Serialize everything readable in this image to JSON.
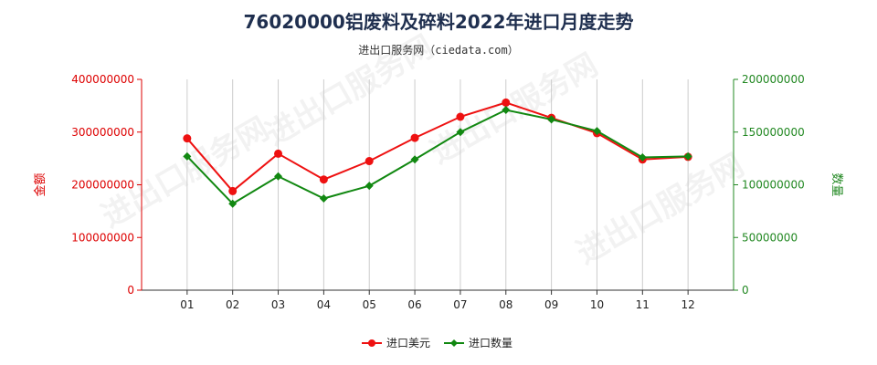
{
  "title": "76020000铝废料及碎料2022年进口月度走势",
  "subtitle": "进出口服务网（ciedata.com）",
  "watermark": "进出口服务网",
  "chart_data": {
    "type": "line",
    "categories": [
      "01",
      "02",
      "03",
      "04",
      "05",
      "06",
      "07",
      "08",
      "09",
      "10",
      "11",
      "12"
    ],
    "y_left": {
      "label": "金额",
      "range": [
        0,
        400000000
      ],
      "ticks": [
        "0",
        "100000000",
        "200000000",
        "300000000",
        "400000000"
      ],
      "color": "#dd0000"
    },
    "y_right": {
      "label": "数量",
      "range": [
        0,
        200000000
      ],
      "ticks": [
        "0",
        "50000000",
        "100000000",
        "150000000",
        "200000000"
      ],
      "color": "#228822"
    },
    "series": [
      {
        "name": "进口美元",
        "axis": "left",
        "color": "#ee1111",
        "values": [
          288000000,
          188000000,
          259000000,
          210000000,
          245000000,
          289000000,
          329000000,
          356000000,
          327000000,
          298000000,
          248000000,
          253000000
        ]
      },
      {
        "name": "进口数量",
        "axis": "right",
        "color": "#118811",
        "values": [
          127000000,
          82000000,
          108000000,
          87000000,
          99000000,
          124000000,
          150000000,
          171000000,
          162000000,
          151000000,
          126000000,
          127000000
        ]
      }
    ],
    "grid": "vertical",
    "legend": "bottom-center"
  }
}
